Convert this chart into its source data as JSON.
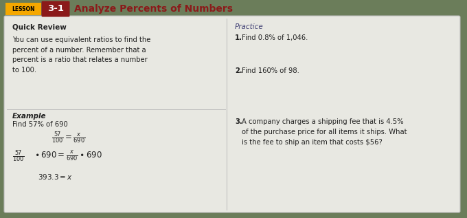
{
  "title_lesson": "LESSON",
  "title_number": "3-1",
  "title_text": "Analyze Percents of Numbers",
  "header_bg": "#f5a800",
  "arrow_bg": "#8b1a1a",
  "title_text_color": "#8b1a1a",
  "bg_color": "#6b7d5a",
  "card_bg": "#e8e8e2",
  "card_border": "#bbbbbb",
  "quick_review_title": "Quick Review",
  "quick_review_body": "You can use equivalent ratios to find the\npercent of a number. Remember that a\npercent is a ratio that relates a number\nto 100.",
  "example_title": "Example",
  "example_sub": "Find 57% of 690",
  "practice_title": "Practice",
  "p1_bold": "1.",
  "p1_rest": " Find 0.8% of 1,046.",
  "p2_bold": "2.",
  "p2_rest": " Find 160% of 98.",
  "p3_bold": "3.",
  "p3_rest": " A company charges a shipping fee that is 4.5%\n   of the purchase price for all items it ships. What\n   is the fee to ship an item that costs $56?",
  "divider_color": "#bbbbbb",
  "text_color": "#222222",
  "practice_title_color": "#444477"
}
